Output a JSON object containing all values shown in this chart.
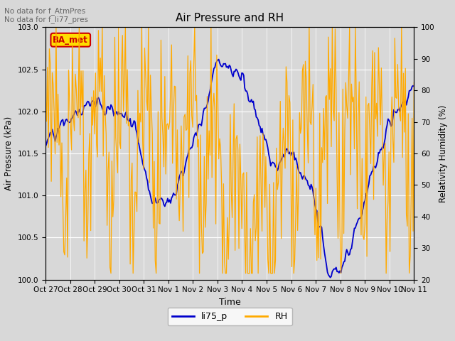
{
  "title": "Air Pressure and RH",
  "xlabel": "Time",
  "ylabel_left": "Air Pressure (kPa)",
  "ylabel_right": "Relativity Humidity (%)",
  "ylim_left": [
    100.0,
    103.0
  ],
  "ylim_right": [
    20,
    100
  ],
  "yticks_left": [
    100.0,
    100.5,
    101.0,
    101.5,
    102.0,
    102.5,
    103.0
  ],
  "yticks_right": [
    20,
    30,
    40,
    50,
    60,
    70,
    80,
    90,
    100
  ],
  "xtick_labels": [
    "Oct 27",
    "Oct 28",
    "Oct 29",
    "Oct 30",
    "Oct 31",
    "Nov 1",
    "Nov 2",
    "Nov 3",
    "Nov 4",
    "Nov 5",
    "Nov 6",
    "Nov 7",
    "Nov 8",
    "Nov 9",
    "Nov 10",
    "Nov 11"
  ],
  "annotation_text": "No data for f_AtmPres\nNo data for f_li77_pres",
  "box_label": "BA_met",
  "box_color": "#ffdd00",
  "box_text_color": "#cc0000",
  "line_li75_color": "#0000cc",
  "line_RH_color": "#ffaa00",
  "legend_li75": "li75_p",
  "legend_RH": "RH",
  "bg_color": "#d8d8d8"
}
